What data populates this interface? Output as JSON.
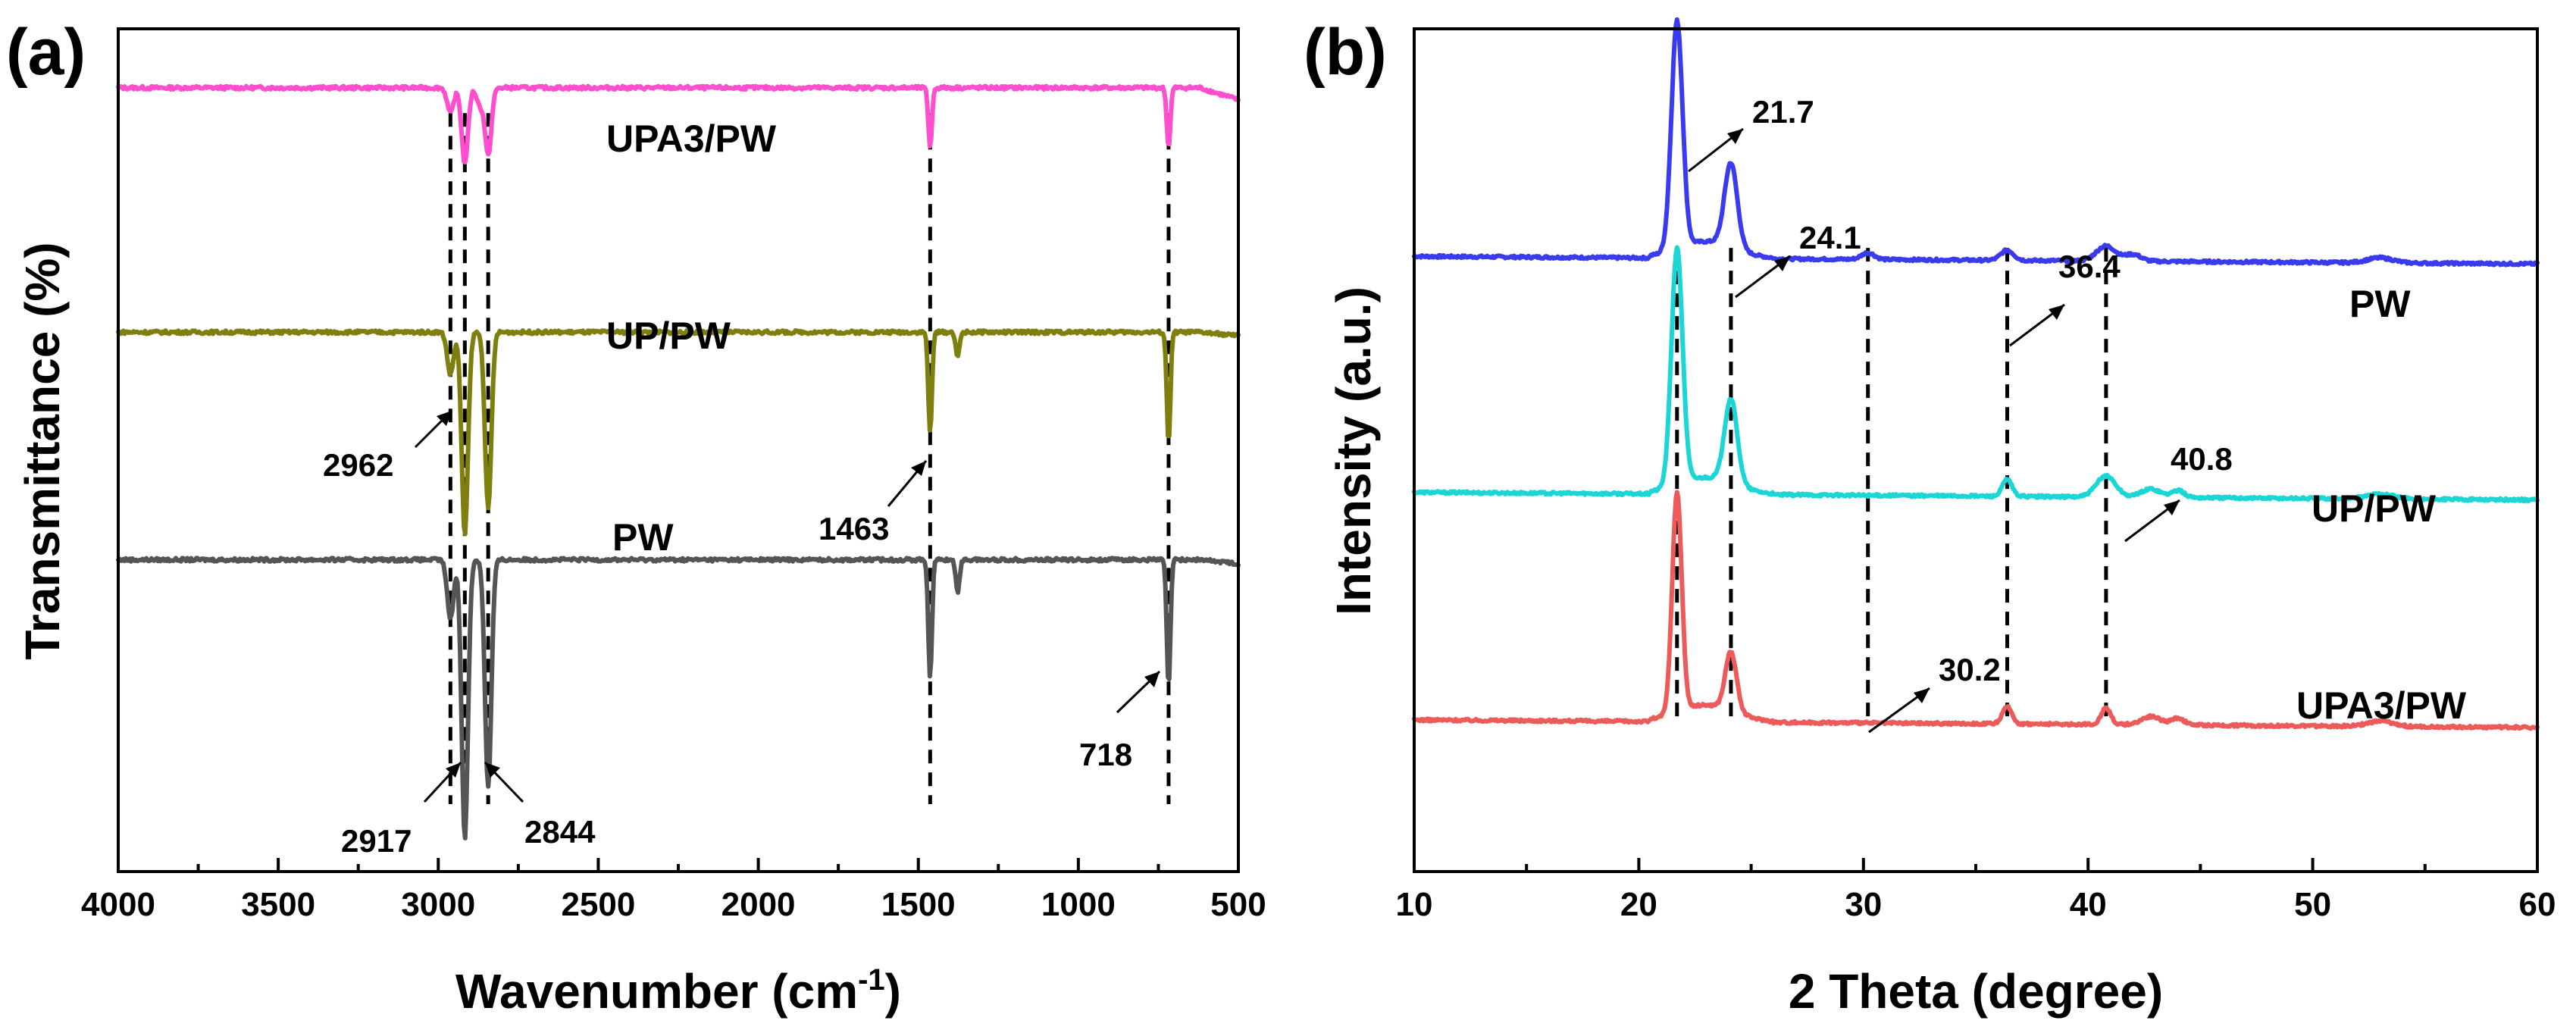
{
  "chart_data": [
    {
      "panel": "(a)",
      "type": "line",
      "xlabel": "Wavenumber (cm",
      "xlabel_sup": "-1",
      "xlabel_close": ")",
      "ylabel": "Transmittance (%)",
      "xlim": [
        4000,
        500
      ],
      "x_reversed": true,
      "xticks": [
        4000,
        3500,
        3000,
        2500,
        2000,
        1500,
        1000,
        500
      ],
      "series": [
        {
          "name": "UPA3/PW",
          "color": "#ff4fcf",
          "baseline": 0.93,
          "peaks": [
            [
              2962,
              0.03
            ],
            [
              2917,
              0.09
            ],
            [
              2844,
              0.08
            ],
            [
              1463,
              0.07
            ],
            [
              718,
              0.07
            ],
            [
              2870,
              0.02
            ]
          ]
        },
        {
          "name": "UP/PW",
          "color": "#7f7f10",
          "baseline": 0.64,
          "peaks": [
            [
              2962,
              0.05
            ],
            [
              2917,
              0.24
            ],
            [
              2844,
              0.21
            ],
            [
              1463,
              0.12
            ],
            [
              1377,
              0.03
            ],
            [
              718,
              0.13
            ]
          ]
        },
        {
          "name": "PW",
          "color": "#555555",
          "baseline": 0.37,
          "peaks": [
            [
              2962,
              0.07
            ],
            [
              2917,
              0.33
            ],
            [
              2844,
              0.27
            ],
            [
              1463,
              0.14
            ],
            [
              1377,
              0.04
            ],
            [
              718,
              0.15
            ]
          ]
        }
      ],
      "dashed_lines": [
        2962,
        2917,
        2844,
        1463,
        718
      ],
      "annotations": [
        "2962",
        "1463",
        "2917",
        "2844",
        "718"
      ]
    },
    {
      "panel": "(b)",
      "type": "line",
      "xlabel": "2 Theta (degree)",
      "ylabel": "Intensity (a.u.)",
      "xlim": [
        10,
        60
      ],
      "xticks": [
        10,
        20,
        30,
        40,
        50,
        60
      ],
      "series": [
        {
          "name": "PW",
          "color": "#3a3aee",
          "baseline": 0.73,
          "peaks": [
            [
              21.7,
              0.27,
              0.35
            ],
            [
              24.1,
              0.1,
              0.4
            ],
            [
              30.2,
              0.008,
              0.4
            ],
            [
              36.4,
              0.012,
              0.4
            ],
            [
              40.8,
              0.018,
              0.6
            ],
            [
              42.0,
              0.008,
              0.5
            ],
            [
              53.0,
              0.006,
              0.8
            ]
          ]
        },
        {
          "name": "UP/PW",
          "color": "#1cd6d6",
          "baseline": 0.45,
          "peaks": [
            [
              21.7,
              0.28,
              0.35
            ],
            [
              24.1,
              0.1,
              0.4
            ],
            [
              36.4,
              0.02,
              0.3
            ],
            [
              40.8,
              0.025,
              0.6
            ],
            [
              42.8,
              0.01,
              0.6
            ],
            [
              44.0,
              0.008,
              0.4
            ],
            [
              53.0,
              0.006,
              0.8
            ]
          ]
        },
        {
          "name": "UPA3/PW",
          "color": "#ec5a5a",
          "baseline": 0.18,
          "peaks": [
            [
              21.7,
              0.26,
              0.3
            ],
            [
              24.1,
              0.07,
              0.35
            ],
            [
              36.4,
              0.02,
              0.3
            ],
            [
              40.8,
              0.02,
              0.3
            ],
            [
              42.8,
              0.01,
              0.6
            ],
            [
              44.0,
              0.008,
              0.4
            ],
            [
              53.0,
              0.006,
              0.8
            ]
          ]
        }
      ],
      "dashed_lines": [
        21.7,
        24.1,
        30.2,
        36.4,
        40.8
      ],
      "annotations": [
        "21.7",
        "24.1",
        "36.4",
        "40.8",
        "30.2"
      ]
    }
  ]
}
